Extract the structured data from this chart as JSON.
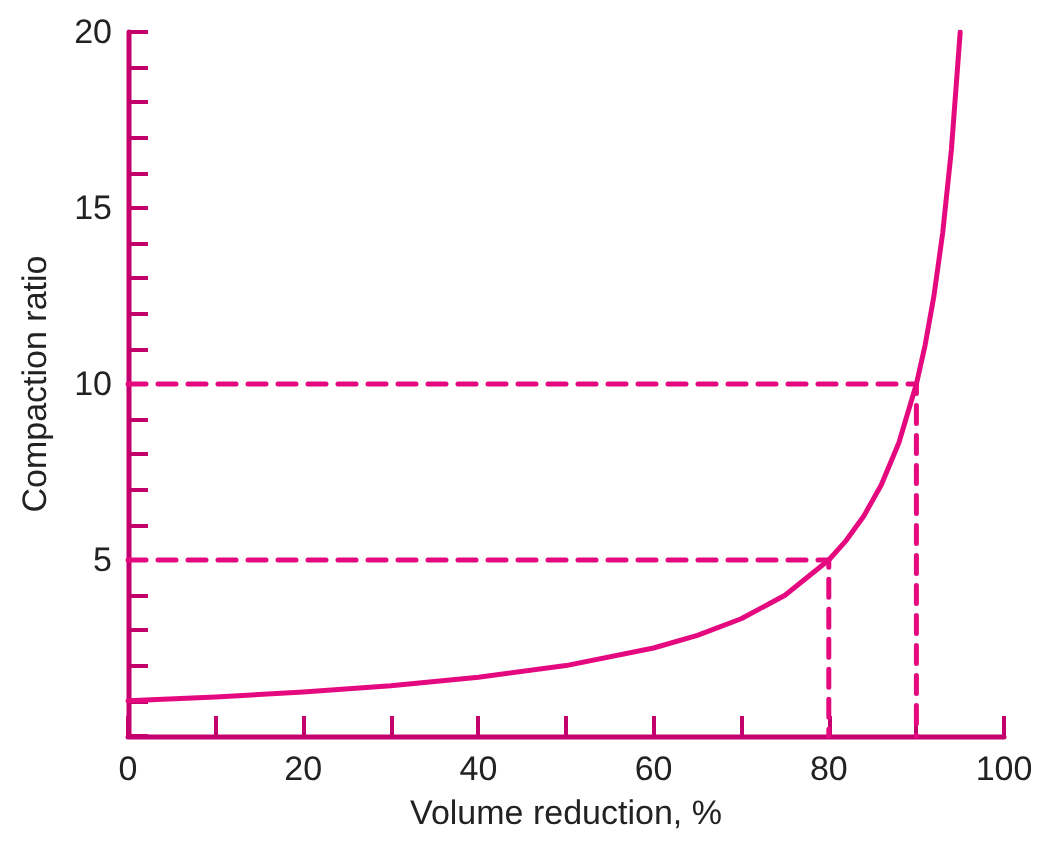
{
  "chart_data": {
    "type": "line",
    "xlabel": "Volume reduction, %",
    "ylabel": "Compaction ratio",
    "xlim": [
      0,
      100
    ],
    "ylim": [
      0,
      20
    ],
    "xticks": [
      0,
      {
        "value": 10,
        "label": null
      },
      20,
      {
        "value": 30,
        "label": null
      },
      40,
      {
        "value": 50,
        "label": null
      },
      60,
      {
        "value": 70,
        "label": null
      },
      80,
      {
        "value": 90,
        "label": null
      },
      100
    ],
    "yticks": [
      {
        "value": 0,
        "label": null
      },
      {
        "value": 1,
        "label": null
      },
      {
        "value": 2,
        "label": null
      },
      {
        "value": 3,
        "label": null
      },
      {
        "value": 4,
        "label": null
      },
      5,
      {
        "value": 6,
        "label": null
      },
      {
        "value": 7,
        "label": null
      },
      {
        "value": 8,
        "label": null
      },
      {
        "value": 9,
        "label": null
      },
      10,
      {
        "value": 11,
        "label": null
      },
      {
        "value": 12,
        "label": null
      },
      {
        "value": 13,
        "label": null
      },
      {
        "value": 14,
        "label": null
      },
      15,
      {
        "value": 16,
        "label": null
      },
      {
        "value": 17,
        "label": null
      },
      {
        "value": 18,
        "label": null
      },
      {
        "value": 19,
        "label": null
      },
      20
    ],
    "series": [
      {
        "color": "#e5097f",
        "x": [
          0,
          10,
          20,
          30,
          40,
          50,
          60,
          65,
          70,
          75,
          80,
          82,
          84,
          86,
          88,
          90,
          91,
          92,
          93,
          94,
          95
        ],
        "values": [
          1,
          1.11,
          1.25,
          1.43,
          1.67,
          2,
          2.5,
          2.86,
          3.33,
          4,
          5,
          5.56,
          6.25,
          7.14,
          8.33,
          10,
          11.11,
          12.5,
          14.29,
          16.67,
          20
        ]
      },
      {
        "color": "#e5097f",
        "line_style": "dashed",
        "x": [
          0,
          80,
          80
        ],
        "values": [
          5,
          5,
          0
        ]
      },
      {
        "color": "#e5097f",
        "line_style": "dashed",
        "x": [
          0,
          90,
          90
        ],
        "values": [
          10,
          10,
          0
        ]
      }
    ]
  }
}
